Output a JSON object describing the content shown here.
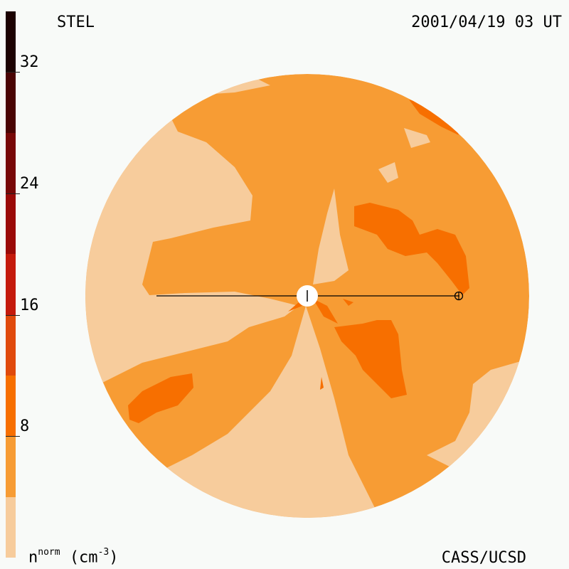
{
  "header": {
    "observatory": "STEL",
    "datetime": "2001/04/19 03 UT"
  },
  "footer": {
    "credit": "CASS/UCSD",
    "unit_base": "n",
    "unit_super": "norm",
    "unit_text": "(cm",
    "unit_exp": "-3",
    "unit_close": ")"
  },
  "colorbar": {
    "min": 0,
    "max": 36,
    "ticks": [
      {
        "value": 8,
        "label": "8"
      },
      {
        "value": 16,
        "label": "16"
      },
      {
        "value": 24,
        "label": "24"
      },
      {
        "value": 32,
        "label": "32"
      }
    ],
    "levels": [
      {
        "from": 0,
        "to": 4,
        "color": "#f7cc9c"
      },
      {
        "from": 4,
        "to": 8,
        "color": "#f79c34"
      },
      {
        "from": 8,
        "to": 12,
        "color": "#f76f00"
      },
      {
        "from": 12,
        "to": 16,
        "color": "#e04a0c"
      },
      {
        "from": 16,
        "to": 20,
        "color": "#c41a0c"
      },
      {
        "from": 20,
        "to": 24,
        "color": "#9a0a08"
      },
      {
        "from": 24,
        "to": 28,
        "color": "#780808"
      },
      {
        "from": 28,
        "to": 32,
        "color": "#4a0404"
      },
      {
        "from": 32,
        "to": 36,
        "color": "#1c0202"
      }
    ]
  },
  "colors": {
    "low": "#f7cc9c",
    "mid": "#f79c34",
    "high": "#f76f00",
    "sun": "#ffffff"
  }
}
